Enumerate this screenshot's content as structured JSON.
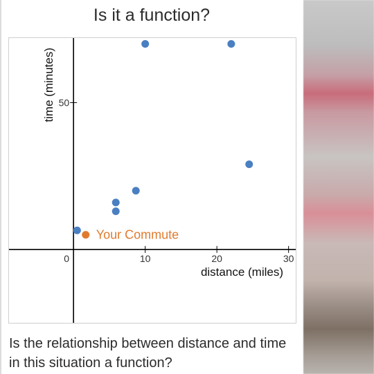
{
  "page": {
    "title": "Is it a function?",
    "question": "Is the relationship between distance and time in this situation a function?"
  },
  "colors": {
    "point": "#4a7fc1",
    "highlight": "#e07b2e",
    "axis": "#000000"
  },
  "chart_data": {
    "type": "scatter",
    "xlabel": "distance (miles)",
    "ylabel": "time (minutes)",
    "xlim": [
      -9,
      31
    ],
    "ylim": [
      -25,
      72
    ],
    "x_ticks": [
      0,
      10,
      20,
      30
    ],
    "y_ticks": [
      50
    ],
    "grid": false,
    "series": [
      {
        "points": [
          {
            "x": 10,
            "y": 70
          },
          {
            "x": 22,
            "y": 70
          },
          {
            "x": 24.5,
            "y": 29
          },
          {
            "x": 8.7,
            "y": 20
          },
          {
            "x": 5.9,
            "y": 16
          },
          {
            "x": 5.9,
            "y": 13
          },
          {
            "x": 0.5,
            "y": 6.5
          }
        ]
      },
      {
        "name": "Your Commute",
        "points": [
          {
            "x": 1.7,
            "y": 5
          }
        ]
      }
    ],
    "annotation": "Your Commute"
  }
}
